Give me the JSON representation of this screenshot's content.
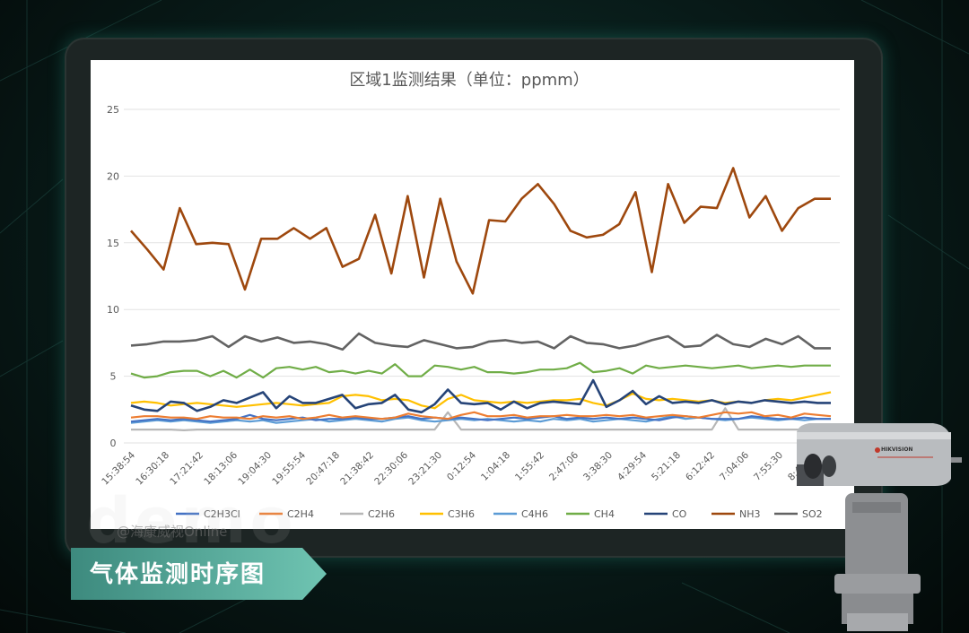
{
  "caption": "气体监测时序图",
  "watermark": "@海康威视Online",
  "watermark_big": "demo",
  "camera_brand": "HIKVISION",
  "colors": {
    "C2H3Cl": "#4472c4",
    "C2H4": "#ed7d31",
    "C2H6": "#b7b7b7",
    "C3H6": "#ffc000",
    "C4H6": "#5b9bd5",
    "CH4": "#70ad47",
    "CO": "#264478",
    "NH3": "#9e480e",
    "SO2": "#636363"
  },
  "chart_data": {
    "type": "line",
    "title": "区域1监测结果（单位：ppmm）",
    "xlabel": "",
    "ylabel": "",
    "ylim": [
      0,
      25
    ],
    "yticks": [
      0,
      5,
      10,
      15,
      20,
      25
    ],
    "grid": true,
    "legend_position": "bottom",
    "x_tick_labels": [
      "15:38:54",
      "16:30:18",
      "17:21:42",
      "18:13:06",
      "19:04:30",
      "19:55:54",
      "20:47:18",
      "21:38:42",
      "22:30:06",
      "23:21:30",
      "0:12:54",
      "1:04:18",
      "1:55:42",
      "2:47:06",
      "3:38:30",
      "4:29:54",
      "5:21:18",
      "6:12:42",
      "7:04:06",
      "7:55:30",
      "8:46:54"
    ],
    "series": [
      {
        "name": "C2H3Cl",
        "values": [
          1.6,
          1.7,
          1.8,
          1.7,
          1.8,
          1.7,
          1.6,
          1.7,
          1.8,
          2.1,
          1.8,
          1.7,
          1.8,
          1.9,
          1.7,
          1.8,
          1.8,
          1.9,
          1.8,
          1.8,
          1.9,
          2.0,
          1.8,
          1.9,
          1.8,
          1.9,
          1.8,
          1.7,
          1.8,
          1.9,
          1.8,
          1.9,
          2.0,
          1.8,
          1.9,
          1.8,
          1.9,
          1.8,
          1.9,
          1.8,
          1.7,
          1.9,
          2.0,
          1.9,
          1.8,
          1.8,
          1.8,
          2.0,
          1.9,
          1.8,
          1.8,
          1.9,
          1.8,
          1.8
        ]
      },
      {
        "name": "C2H4",
        "values": [
          1.9,
          2.0,
          2.0,
          1.9,
          1.9,
          1.8,
          2.0,
          1.9,
          1.9,
          1.8,
          2.0,
          1.9,
          2.0,
          1.8,
          1.9,
          2.1,
          1.9,
          2.0,
          1.9,
          1.8,
          1.9,
          2.2,
          2.0,
          1.9,
          1.8,
          2.1,
          2.3,
          2.0,
          2.0,
          2.1,
          1.9,
          2.0,
          2.0,
          2.1,
          2.0,
          2.0,
          2.1,
          2.0,
          2.1,
          1.9,
          2.0,
          2.1,
          2.0,
          1.9,
          2.1,
          2.3,
          2.2,
          2.3,
          2.0,
          2.1,
          1.9,
          2.2,
          2.1,
          2.0
        ]
      },
      {
        "name": "C2H6",
        "values": [
          1.0,
          1.0,
          1.0,
          1.0,
          0.95,
          1.0,
          1.0,
          1.0,
          1.0,
          1.0,
          1.0,
          1.0,
          1.0,
          1.0,
          1.0,
          1.0,
          1.0,
          1.0,
          1.0,
          1.0,
          1.0,
          1.0,
          1.0,
          1.0,
          2.3,
          1.0,
          1.0,
          1.0,
          1.0,
          1.0,
          1.0,
          1.0,
          1.0,
          1.0,
          1.0,
          1.0,
          1.0,
          1.0,
          1.0,
          1.0,
          1.0,
          1.0,
          1.0,
          1.0,
          1.0,
          2.6,
          1.0,
          1.0,
          1.0,
          1.0,
          1.0,
          1.0,
          1.0,
          1.0
        ]
      },
      {
        "name": "C3H6",
        "values": [
          3.0,
          3.1,
          3.0,
          2.8,
          2.9,
          3.0,
          2.9,
          2.8,
          2.7,
          2.8,
          2.9,
          3.0,
          2.9,
          2.8,
          2.9,
          3.0,
          3.5,
          3.6,
          3.5,
          3.2,
          3.3,
          3.2,
          2.8,
          2.6,
          3.3,
          3.6,
          3.2,
          3.1,
          3.0,
          3.1,
          3.0,
          3.1,
          3.2,
          3.2,
          3.3,
          3.0,
          2.8,
          3.2,
          3.7,
          3.3,
          3.2,
          3.3,
          3.2,
          3.1,
          3.2,
          3.0,
          3.1,
          3.0,
          3.2,
          3.3,
          3.2,
          3.4,
          3.6,
          3.8
        ]
      },
      {
        "name": "C4H6",
        "values": [
          1.5,
          1.6,
          1.7,
          1.6,
          1.7,
          1.6,
          1.5,
          1.6,
          1.7,
          1.6,
          1.7,
          1.5,
          1.6,
          1.7,
          1.8,
          1.6,
          1.7,
          1.8,
          1.7,
          1.6,
          1.8,
          1.9,
          1.7,
          1.6,
          1.7,
          1.8,
          1.7,
          1.8,
          1.7,
          1.6,
          1.7,
          1.6,
          1.8,
          1.7,
          1.8,
          1.6,
          1.7,
          1.8,
          1.7,
          1.6,
          1.8,
          2.0,
          1.8,
          1.9,
          1.8,
          1.7,
          1.8,
          1.9,
          1.8,
          1.7,
          1.8,
          1.7,
          1.8,
          1.8
        ]
      },
      {
        "name": "CH4",
        "values": [
          5.2,
          4.9,
          5.0,
          5.3,
          5.4,
          5.4,
          5.0,
          5.4,
          4.9,
          5.5,
          4.9,
          5.6,
          5.7,
          5.5,
          5.7,
          5.3,
          5.4,
          5.2,
          5.4,
          5.2,
          5.9,
          5.0,
          5.0,
          5.8,
          5.7,
          5.5,
          5.7,
          5.3,
          5.3,
          5.2,
          5.3,
          5.5,
          5.5,
          5.6,
          6.0,
          5.3,
          5.4,
          5.6,
          5.2,
          5.8,
          5.6,
          5.7,
          5.8,
          5.7,
          5.6,
          5.7,
          5.8,
          5.6,
          5.7,
          5.8,
          5.7,
          5.8,
          5.8,
          5.8
        ]
      },
      {
        "name": "CO",
        "values": [
          2.8,
          2.5,
          2.4,
          3.1,
          3.0,
          2.4,
          2.7,
          3.2,
          3.0,
          3.4,
          3.8,
          2.6,
          3.5,
          3.0,
          3.0,
          3.3,
          3.6,
          2.6,
          2.9,
          3.0,
          3.6,
          2.5,
          2.3,
          2.9,
          4.0,
          3.0,
          2.9,
          3.0,
          2.5,
          3.1,
          2.6,
          3.0,
          3.1,
          3.0,
          2.9,
          4.7,
          2.7,
          3.2,
          3.9,
          2.9,
          3.5,
          3.0,
          3.1,
          3.0,
          3.2,
          2.9,
          3.1,
          3.0,
          3.2,
          3.1,
          3.0,
          3.1,
          3.0,
          3.0
        ]
      },
      {
        "name": "NH3",
        "values": [
          15.9,
          14.5,
          13.0,
          17.6,
          14.9,
          15.0,
          14.9,
          11.5,
          15.3,
          15.3,
          16.1,
          15.3,
          16.1,
          13.2,
          13.8,
          17.1,
          12.7,
          18.5,
          12.4,
          18.3,
          13.6,
          11.2,
          16.7,
          16.6,
          18.3,
          19.4,
          17.9,
          15.9,
          15.4,
          15.6,
          16.4,
          18.8,
          12.8,
          19.4,
          16.5,
          17.7,
          17.6,
          20.6,
          16.9,
          18.5,
          15.9,
          17.6,
          18.3,
          18.3
        ]
      },
      {
        "name": "SO2",
        "values": [
          7.3,
          7.4,
          7.6,
          7.6,
          7.7,
          8.0,
          7.2,
          8.0,
          7.6,
          7.9,
          7.5,
          7.6,
          7.4,
          7.0,
          8.2,
          7.5,
          7.3,
          7.2,
          7.7,
          7.4,
          7.1,
          7.2,
          7.6,
          7.7,
          7.5,
          7.6,
          7.1,
          8.0,
          7.5,
          7.4,
          7.1,
          7.3,
          7.7,
          8.0,
          7.2,
          7.3,
          8.1,
          7.4,
          7.2,
          7.8,
          7.4,
          8.0,
          7.1,
          7.1
        ]
      }
    ]
  }
}
